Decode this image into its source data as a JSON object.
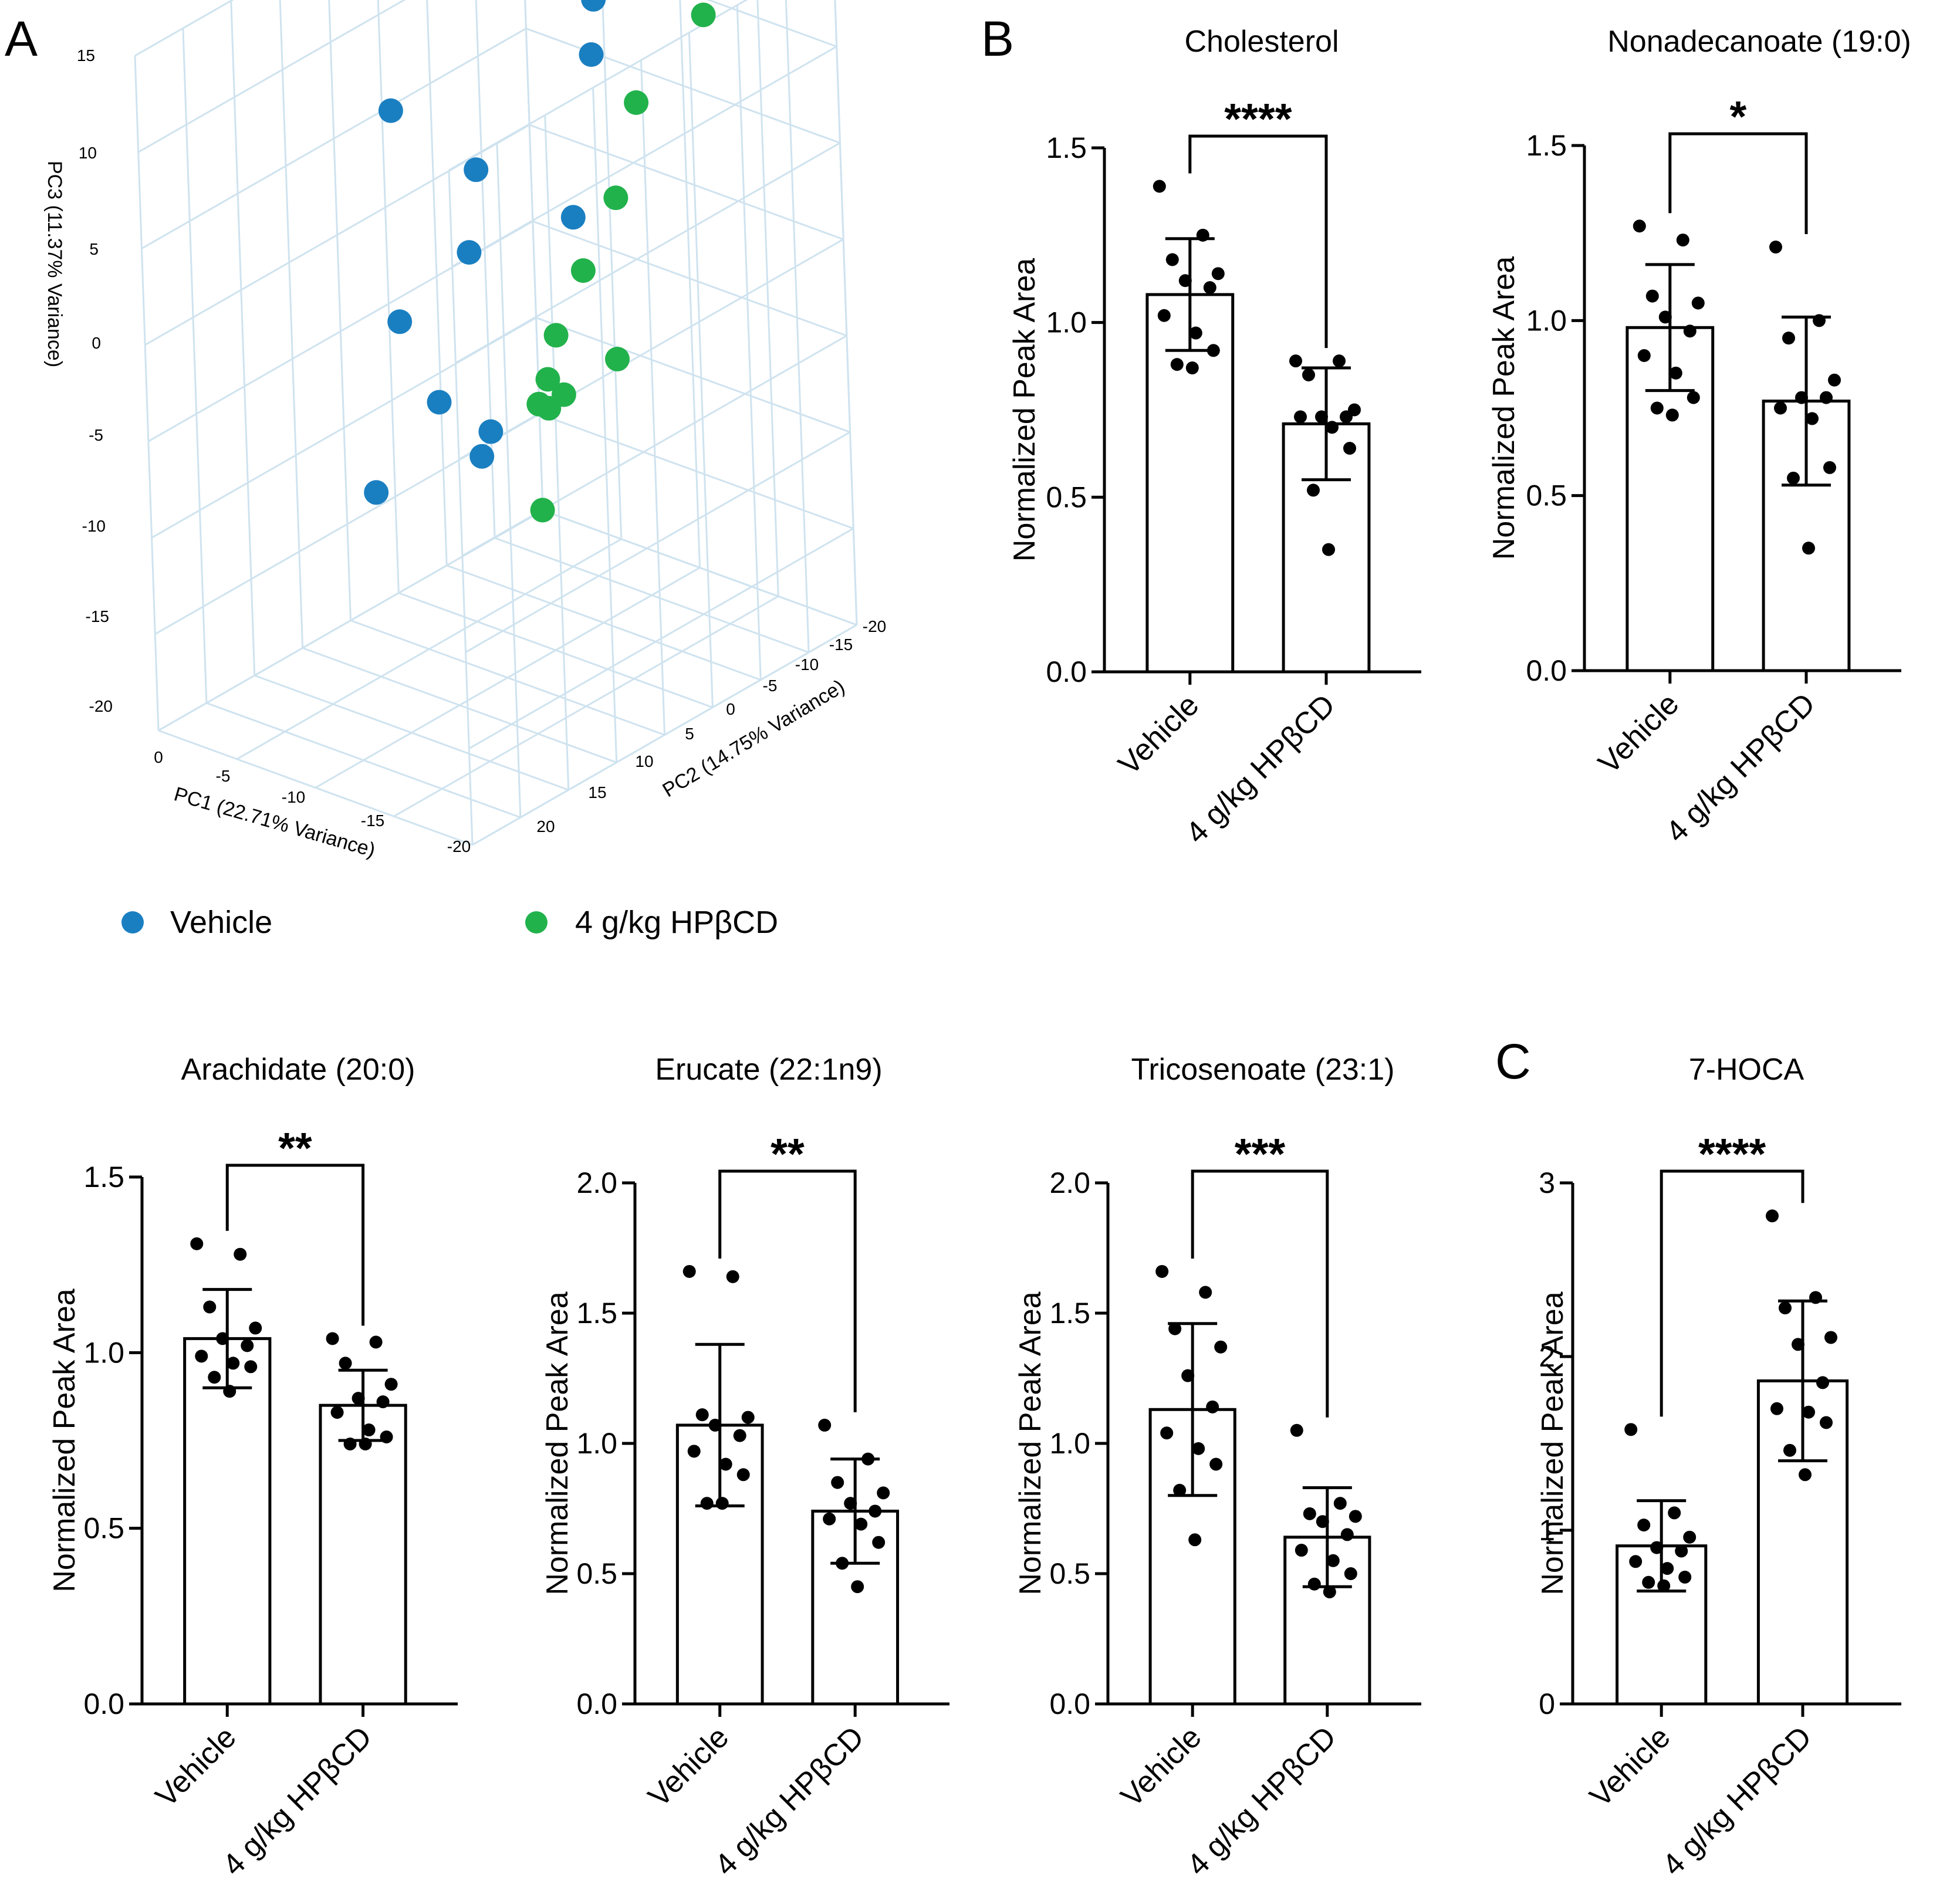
{
  "figure": {
    "panel_labels": [
      "A",
      "B",
      "C"
    ]
  },
  "colors": {
    "vehicle": "#1a7fc1",
    "hpbcd": "#22b24c",
    "grid": "#cfe3ef",
    "ink": "#000000"
  },
  "chart_data": [
    {
      "id": "pca",
      "type": "scatter",
      "title": "",
      "x_axis": {
        "label": "PC1 (22.71% Variance)",
        "ticks": [
          "0",
          "-5",
          "-10",
          "-15",
          "-20"
        ]
      },
      "y_axis": {
        "label": "PC2 (14.75% Variance)",
        "ticks": [
          "20",
          "15",
          "10",
          "5",
          "0",
          "-5",
          "-10",
          "-15",
          "-20"
        ]
      },
      "z_axis": {
        "label": "PC3 (11.37% Variance)",
        "ticks": [
          "15",
          "10",
          "5",
          "0",
          "-5",
          "-10",
          "-15",
          "-20"
        ]
      },
      "grid": true,
      "legend": {
        "position": "bottom",
        "entries": [
          "Vehicle",
          "4 g/kg HPβCD"
        ]
      },
      "series": [
        {
          "name": "Vehicle",
          "color": "#1a7fc1",
          "points": [
            {
              "pc1": -12,
              "pc2": -8,
              "pc3": 13.5
            },
            {
              "pc1": -13,
              "pc2": -6,
              "pc3": 11.5
            },
            {
              "pc1": -5,
              "pc2": 2,
              "pc3": 8.5
            },
            {
              "pc1": -11,
              "pc2": 3,
              "pc3": 7.5
            },
            {
              "pc1": -14,
              "pc2": -2,
              "pc3": 4.5
            },
            {
              "pc1": -11,
              "pc2": 4,
              "pc3": 3.5
            },
            {
              "pc1": -7,
              "pc2": 5,
              "pc3": -1
            },
            {
              "pc1": -10,
              "pc2": 6,
              "pc3": -4
            },
            {
              "pc1": -12,
              "pc2": 4,
              "pc3": -5.5
            },
            {
              "pc1": -12,
              "pc2": 5,
              "pc3": -6.5
            },
            {
              "pc1": -7,
              "pc2": 8,
              "pc3": -9
            }
          ]
        },
        {
          "name": "4 g/kg HPβCD",
          "color": "#22b24c",
          "points": [
            {
              "pc1": -14,
              "pc2": -16,
              "pc3": 11
            },
            {
              "pc1": -12,
              "pc2": -12,
              "pc3": 7
            },
            {
              "pc1": -13,
              "pc2": -8,
              "pc3": 3.5
            },
            {
              "pc1": -12,
              "pc2": -6,
              "pc3": 0
            },
            {
              "pc1": -12,
              "pc2": -3,
              "pc3": -2.5
            },
            {
              "pc1": -14,
              "pc2": -6,
              "pc3": -4
            },
            {
              "pc1": -12,
              "pc2": -2,
              "pc3": -4.5
            },
            {
              "pc1": -13,
              "pc2": -2,
              "pc3": -5
            },
            {
              "pc1": -12,
              "pc2": -1,
              "pc3": -5.5
            },
            {
              "pc1": -12,
              "pc2": -2,
              "pc3": -6
            },
            {
              "pc1": -12,
              "pc2": -1,
              "pc3": -11
            }
          ]
        }
      ]
    },
    {
      "id": "cholesterol",
      "type": "bar",
      "title": "Cholesterol",
      "ylabel": "Normalized Peak Area",
      "ylim": [
        0,
        1.5
      ],
      "yticks": [
        "0.0",
        "0.5",
        "1.0",
        "1.5"
      ],
      "categories": [
        "Vehicle",
        "4 g/kg HPβCD"
      ],
      "values": [
        1.08,
        0.71
      ],
      "errors": [
        0.16,
        0.16
      ],
      "points": [
        [
          1.39,
          1.25,
          1.18,
          1.14,
          1.12,
          1.1,
          1.02,
          0.97,
          0.92,
          0.88,
          0.87
        ],
        [
          0.89,
          0.89,
          0.85,
          0.75,
          0.73,
          0.73,
          0.73,
          0.7,
          0.64,
          0.52,
          0.35
        ]
      ],
      "significance": "****"
    },
    {
      "id": "nonadecanoate",
      "type": "bar",
      "title": "Nonadecanoate (19:0)",
      "ylabel": "Normalized Peak Area",
      "ylim": [
        0,
        1.5
      ],
      "yticks": [
        "0.0",
        "0.5",
        "1.0",
        "1.5"
      ],
      "categories": [
        "Vehicle",
        "4 g/kg HPβCD"
      ],
      "values": [
        0.98,
        0.77
      ],
      "errors": [
        0.18,
        0.24
      ],
      "points": [
        [
          1.27,
          1.23,
          1.07,
          1.05,
          1.01,
          0.97,
          0.9,
          0.85,
          0.78,
          0.75,
          0.73
        ],
        [
          1.21,
          1.0,
          0.95,
          0.83,
          0.78,
          0.78,
          0.75,
          0.72,
          0.58,
          0.55,
          0.35
        ]
      ],
      "significance": "*"
    },
    {
      "id": "arachidate",
      "type": "bar",
      "title": "Arachidate (20:0)",
      "ylabel": "Normalized Peak Area",
      "ylim": [
        0,
        1.5
      ],
      "yticks": [
        "0.0",
        "0.5",
        "1.0",
        "1.5"
      ],
      "categories": [
        "Vehicle",
        "4 g/kg HPβCD"
      ],
      "values": [
        1.04,
        0.85
      ],
      "errors": [
        0.14,
        0.1
      ],
      "points": [
        [
          1.31,
          1.28,
          1.13,
          1.07,
          1.04,
          1.02,
          0.99,
          0.97,
          0.96,
          0.93,
          0.89
        ],
        [
          1.04,
          1.03,
          0.97,
          0.91,
          0.87,
          0.86,
          0.83,
          0.78,
          0.76,
          0.74,
          0.74
        ]
      ],
      "significance": "**"
    },
    {
      "id": "erucate",
      "type": "bar",
      "title": "Erucate (22:1n9)",
      "ylabel": "Normalized Peak Area",
      "ylim": [
        0,
        2.0
      ],
      "yticks": [
        "0.0",
        "0.5",
        "1.0",
        "1.5",
        "2.0"
      ],
      "categories": [
        "Vehicle",
        "4 g/kg HPβCD"
      ],
      "values": [
        1.07,
        0.74
      ],
      "errors": [
        0.31,
        0.2
      ],
      "points": [
        [
          1.66,
          1.64,
          1.11,
          1.1,
          1.07,
          1.03,
          0.97,
          0.92,
          0.88,
          0.77,
          0.77
        ],
        [
          1.07,
          0.94,
          0.85,
          0.81,
          0.77,
          0.74,
          0.71,
          0.69,
          0.62,
          0.54,
          0.45
        ]
      ],
      "significance": "**"
    },
    {
      "id": "tricosenoate",
      "type": "bar",
      "title": "Tricosenoate (23:1)",
      "ylabel": "Normalized Peak Area",
      "ylim": [
        0,
        2.0
      ],
      "yticks": [
        "0.0",
        "0.5",
        "1.0",
        "1.5",
        "2.0"
      ],
      "categories": [
        "Vehicle",
        "4 g/kg HPβCD"
      ],
      "values": [
        1.13,
        0.64
      ],
      "errors": [
        0.33,
        0.19
      ],
      "points": [
        [
          1.66,
          1.58,
          1.44,
          1.37,
          1.26,
          1.14,
          1.04,
          0.98,
          0.92,
          0.82,
          0.63
        ],
        [
          1.05,
          0.77,
          0.73,
          0.72,
          0.7,
          0.65,
          0.59,
          0.55,
          0.5,
          0.46,
          0.43
        ]
      ],
      "significance": "***"
    },
    {
      "id": "hoca",
      "type": "bar",
      "title": "7-HOCA",
      "ylabel": "Normalized Peak Area",
      "ylim": [
        0,
        3
      ],
      "yticks": [
        "0",
        "1",
        "2",
        "3"
      ],
      "categories": [
        "Vehicle",
        "4 g/kg HPβCD"
      ],
      "values": [
        0.91,
        1.86
      ],
      "errors": [
        0.26,
        0.46
      ],
      "points": [
        [
          1.58,
          1.1,
          1.03,
          0.96,
          0.9,
          0.88,
          0.82,
          0.78,
          0.73,
          0.7,
          0.68
        ],
        [
          2.81,
          2.34,
          2.28,
          2.11,
          2.07,
          1.85,
          1.7,
          1.68,
          1.62,
          1.46,
          1.32
        ]
      ],
      "significance": "****"
    }
  ]
}
